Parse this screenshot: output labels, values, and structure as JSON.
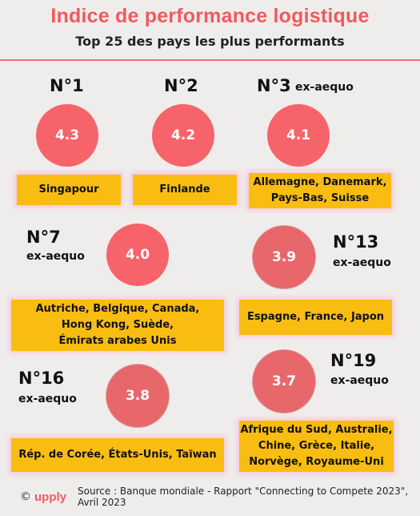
{
  "header": {
    "title": "Indice de performance logistique",
    "subtitle": "Top 25 des pays les plus performants"
  },
  "ranks": [
    {
      "rank": "N°1",
      "score": "4.3",
      "countries": [
        "Singapour"
      ]
    },
    {
      "rank": "N°2",
      "score": "4.2",
      "countries": [
        "Finlande"
      ]
    },
    {
      "rank": "N°3",
      "tag": "ex-aequo",
      "score": "4.1",
      "countries": [
        "Allemagne, Danemark,",
        "Pays-Bas, Suisse"
      ]
    },
    {
      "rank": "N°7",
      "tag": "ex-aequo",
      "score": "4.0",
      "countries": [
        "Autriche, Belgique, Canada,",
        "Hong Kong, Suède,",
        "Émirats arabes Unis"
      ]
    },
    {
      "rank": "N°13",
      "tag": "ex-aequo",
      "score": "3.9",
      "countries": [
        "Espagne, France, Japon"
      ]
    },
    {
      "rank": "N°16",
      "tag": "ex-aequo",
      "score": "3.8",
      "countries": [
        "Rép. de Corée, États-Unis, Taïwan"
      ]
    },
    {
      "rank": "N°19",
      "tag": "ex-aequo",
      "score": "3.7",
      "countries": [
        "Afrique du Sud, Australie,",
        "Chine, Grèce, Italie,",
        "Norvège, Royaume-Uni"
      ]
    }
  ],
  "footer": {
    "copyright": "©",
    "brand": "upply",
    "source": "Source : Banque mondiale - Rapport \"Connecting to Compete 2023\", Avril 2023"
  },
  "colors": {
    "accent": "#f05a5f",
    "circle": "#f7636a",
    "box": "#f9bd12",
    "background": "#efedec"
  }
}
